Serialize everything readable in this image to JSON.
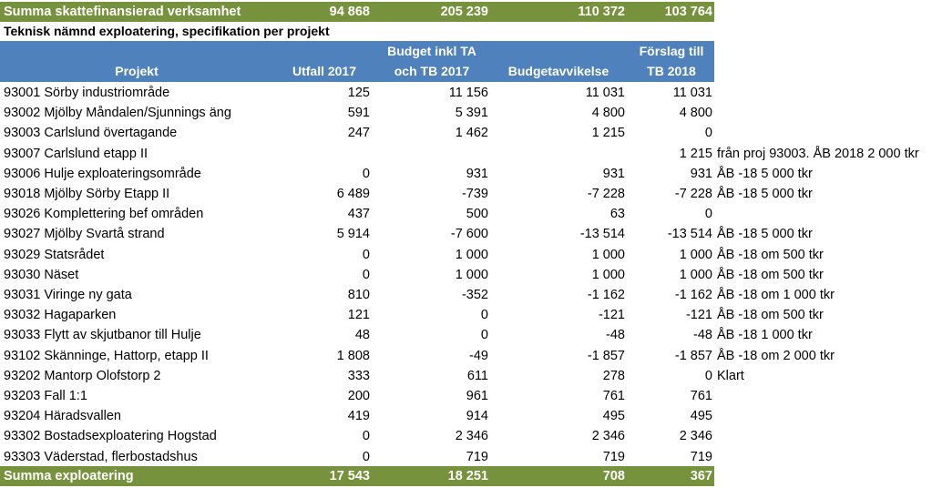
{
  "top_total": {
    "label": "Summa skattefinansierad verksamhet",
    "values": [
      "94 868",
      "205 239",
      "110 372",
      "103 764"
    ]
  },
  "subtitle": "Teknisk nämnd exploatering, specifikation per projekt",
  "headers": {
    "projekt": "Projekt",
    "utfall": "Utfall 2017",
    "budget_line1": "Budget inkl TA",
    "budget_line2": "och TB 2017",
    "avvikelse": "Budgetavvikelse",
    "forslag_line1": "Förslag till",
    "forslag_line2": "TB 2018"
  },
  "rows": [
    {
      "name": "93001 Sörby industriområde",
      "utfall": "125",
      "budget": "11 156",
      "avvikelse": "11 031",
      "forslag": "11 031",
      "note": ""
    },
    {
      "name": "93002 Mjölby Måndalen/Sjunnings äng",
      "utfall": "591",
      "budget": "5 391",
      "avvikelse": "4 800",
      "forslag": "4 800",
      "note": ""
    },
    {
      "name": "93003 Carlslund övertagande",
      "utfall": "247",
      "budget": "1 462",
      "avvikelse": "1 215",
      "forslag": "0",
      "note": ""
    },
    {
      "name": "93007 Carlslund etapp II",
      "utfall": "",
      "budget": "",
      "avvikelse": "",
      "forslag": "1 215",
      "note": "från proj 93003. ÅB 2018 2 000 tkr"
    },
    {
      "name": "93006 Hulje exploateringsområde",
      "utfall": "0",
      "budget": "931",
      "avvikelse": "931",
      "forslag": "931",
      "note": "ÅB -18 5 000 tkr"
    },
    {
      "name": "93018 Mjölby Sörby Etapp II",
      "utfall": "6 489",
      "budget": "-739",
      "avvikelse": "-7 228",
      "forslag": "-7 228",
      "note": "ÅB -18 5 000 tkr"
    },
    {
      "name": "93026 Komplettering bef områden",
      "utfall": "437",
      "budget": "500",
      "avvikelse": "63",
      "forslag": "0",
      "note": ""
    },
    {
      "name": "93027 Mjölby Svartå strand",
      "utfall": "5 914",
      "budget": "-7 600",
      "avvikelse": "-13 514",
      "forslag": "-13 514",
      "note": "ÅB -18 5 000 tkr"
    },
    {
      "name": "93029 Statsrådet",
      "utfall": "0",
      "budget": "1 000",
      "avvikelse": "1 000",
      "forslag": "1 000",
      "note": "ÅB -18 om 500 tkr"
    },
    {
      "name": "93030 Näset",
      "utfall": "0",
      "budget": "1 000",
      "avvikelse": "1 000",
      "forslag": "1 000",
      "note": "ÅB -18 om 500 tkr"
    },
    {
      "name": "93031 Viringe ny gata",
      "utfall": "810",
      "budget": "-352",
      "avvikelse": "-1 162",
      "forslag": "-1 162",
      "note": "ÅB -18 om 1 000 tkr"
    },
    {
      "name": "93032 Hagaparken",
      "utfall": "121",
      "budget": "0",
      "avvikelse": "-121",
      "forslag": "-121",
      "note": "ÅB -18 om 500 tkr"
    },
    {
      "name": "93033 Flytt av skjutbanor till Hulje",
      "utfall": "48",
      "budget": "0",
      "avvikelse": "-48",
      "forslag": "-48",
      "note": "ÅB -18 1 000 tkr"
    },
    {
      "name": "93102 Skänninge, Hattorp, etapp II",
      "utfall": "1 808",
      "budget": "-49",
      "avvikelse": "-1 857",
      "forslag": "-1 857",
      "note": "ÅB -18 om 2 000 tkr"
    },
    {
      "name": "93202 Mantorp Olofstorp 2",
      "utfall": "333",
      "budget": "611",
      "avvikelse": "278",
      "forslag": "0",
      "note": "Klart"
    },
    {
      "name": "93203 Fall 1:1",
      "utfall": "200",
      "budget": "961",
      "avvikelse": "761",
      "forslag": "761",
      "note": ""
    },
    {
      "name": "93204 Häradsvallen",
      "utfall": "419",
      "budget": "914",
      "avvikelse": "495",
      "forslag": "495",
      "note": ""
    },
    {
      "name": "93302 Bostadsexploatering Hogstad",
      "utfall": "0",
      "budget": "2 346",
      "avvikelse": "2 346",
      "forslag": "2 346",
      "note": ""
    },
    {
      "name": "93303 Väderstad, flerbostadshus",
      "utfall": "0",
      "budget": "719",
      "avvikelse": "719",
      "forslag": "719",
      "note": ""
    }
  ],
  "bottom_total": {
    "label": "Summa exploatering",
    "values": [
      "17 543",
      "18 251",
      "708",
      "367"
    ]
  },
  "colors": {
    "total_bar": "#76923c",
    "header_bar": "#4f81bd"
  }
}
